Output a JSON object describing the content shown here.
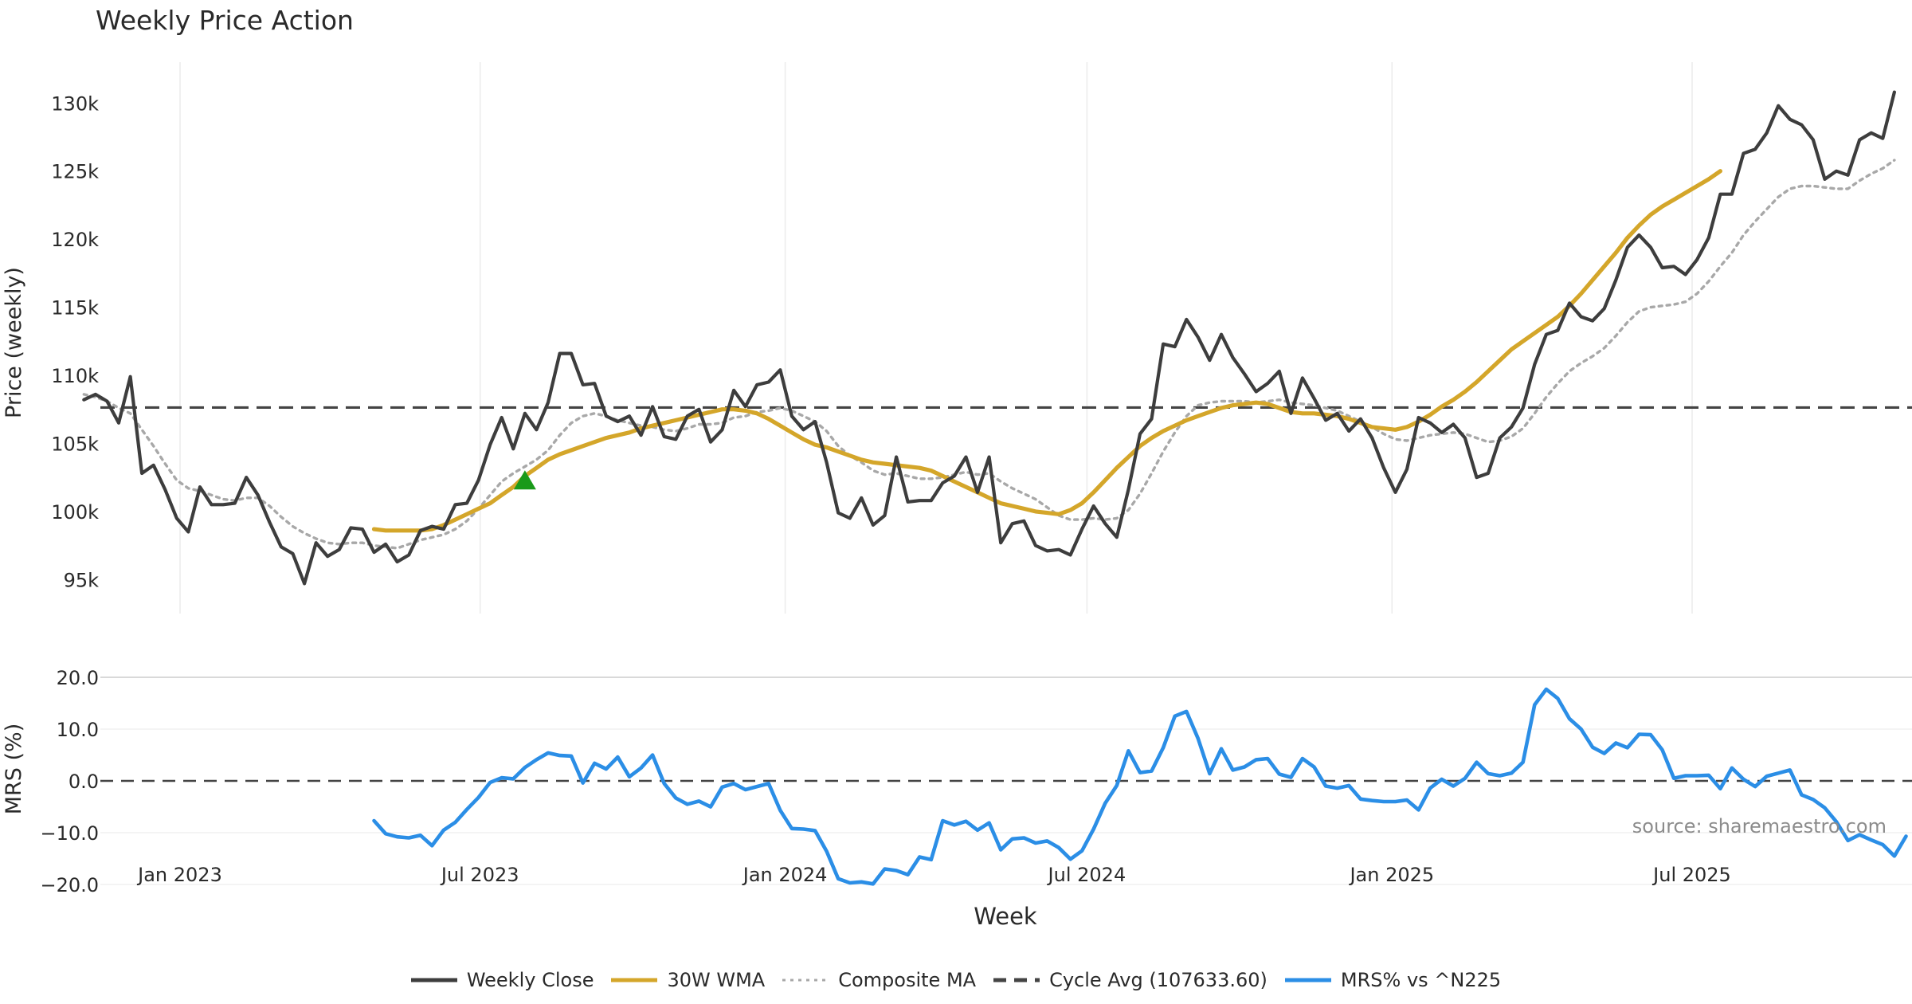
{
  "title": "Weekly Price Action",
  "source": "source: sharemaestro.com",
  "xlabel": "Week",
  "colors": {
    "close": "#3d3d3d",
    "wma": "#d4a62a",
    "composite": "#a8a8a8",
    "cycle": "#444444",
    "mrs": "#2b8ee6",
    "marker": "#1a9a1a",
    "grid": "#ececec"
  },
  "chart_data": [
    {
      "type": "line",
      "title": "Weekly Price Action",
      "xlabel": "Week",
      "ylabel": "Price (weekly)",
      "ylim": [
        92500,
        133000
      ],
      "yticks": [
        95000,
        100000,
        105000,
        110000,
        115000,
        120000,
        125000,
        130000
      ],
      "ytick_labels": [
        "95k",
        "100k",
        "105k",
        "110k",
        "115k",
        "120k",
        "125k",
        "130k"
      ],
      "x_start": "2022-11-04",
      "x_step_weeks": 1,
      "xticks": [
        "2023-01-01",
        "2023-07-01",
        "2024-01-01",
        "2024-07-01",
        "2025-01-01",
        "2025-07-01"
      ],
      "xtick_labels": [
        "Jan 2023",
        "Jul 2023",
        "Jan 2024",
        "Jul 2024",
        "Jan 2025",
        "Jul 2025"
      ],
      "series": [
        {
          "name": "Weekly Close",
          "start_index": 0,
          "values": [
            108200,
            108600,
            108100,
            106500,
            109900,
            102800,
            103400,
            101600,
            99500,
            98500,
            101800,
            100500,
            100500,
            100600,
            102500,
            101200,
            99200,
            97400,
            96900,
            94700,
            97700,
            96700,
            97200,
            98800,
            98700,
            97000,
            97600,
            96300,
            96800,
            98600,
            98900,
            98700,
            100500,
            100600,
            102300,
            104900,
            106900,
            104600,
            107200,
            106000,
            108000,
            111600,
            111600,
            109300,
            109400,
            107000,
            106600,
            107000,
            105600,
            107700,
            105500,
            105300,
            107000,
            107500,
            105100,
            106000,
            108900,
            107700,
            109300,
            109500,
            110400,
            107000,
            106000,
            106600,
            103600,
            99900,
            99500,
            101000,
            99000,
            99700,
            104000,
            100700,
            100800,
            100800,
            102100,
            102600,
            104000,
            101400,
            104000,
            97700,
            99100,
            99300,
            97500,
            97100,
            97200,
            96800,
            98700,
            100400,
            99100,
            98100,
            101600,
            105700,
            106800,
            112300,
            112100,
            114100,
            112800,
            111100,
            113000,
            111300,
            110100,
            108800,
            109400,
            110300,
            107200,
            109800,
            108300,
            106700,
            107200,
            105900,
            106800,
            105400,
            103200,
            101400,
            103100,
            106900,
            106500,
            105800,
            106400,
            105400,
            102500,
            102800,
            105400,
            106200,
            107600,
            110800,
            113000,
            113300,
            115300,
            114300,
            114000,
            114900,
            117000,
            119400,
            120300,
            119400,
            117900,
            118000,
            117400,
            118500,
            120100,
            123300,
            123300,
            126300,
            126600,
            127800,
            129800,
            128800,
            128400,
            127300,
            124400,
            125000,
            124700,
            127300,
            127800,
            127400,
            130800
          ]
        },
        {
          "name": "30W WMA",
          "start_index": 25,
          "values": [
            98700,
            98600,
            98600,
            98600,
            98600,
            98700,
            99000,
            99400,
            99800,
            100200,
            100600,
            101200,
            101800,
            102600,
            103200,
            103800,
            104200,
            104500,
            104800,
            105100,
            105400,
            105600,
            105800,
            106100,
            106300,
            106500,
            106700,
            106900,
            107100,
            107300,
            107500,
            107500,
            107400,
            107200,
            106800,
            106300,
            105800,
            105300,
            104900,
            104700,
            104400,
            104100,
            103800,
            103600,
            103500,
            103400,
            103300,
            103200,
            103000,
            102600,
            102200,
            101800,
            101400,
            101000,
            100600,
            100400,
            100200,
            100000,
            99900,
            99800,
            100100,
            100600,
            101400,
            102300,
            103200,
            104000,
            104800,
            105400,
            105900,
            106300,
            106700,
            107000,
            107300,
            107600,
            107800,
            107900,
            108000,
            107900,
            107600,
            107300,
            107200,
            107200,
            107100,
            107000,
            106800,
            106500,
            106200,
            106100,
            106000,
            106200,
            106600,
            107100,
            107700,
            108200,
            108800,
            109500,
            110300,
            111100,
            111900,
            112500,
            113100,
            113700,
            114300,
            115100,
            116000,
            117000,
            118000,
            119000,
            120100,
            121000,
            121800,
            122400,
            122900,
            123400,
            123900,
            124400,
            125000
          ]
        },
        {
          "name": "Composite MA",
          "start_index": 0,
          "values": [
            108600,
            108400,
            108100,
            107600,
            107200,
            106000,
            104800,
            103500,
            102300,
            101700,
            101500,
            101200,
            100900,
            100800,
            101000,
            101000,
            100400,
            99600,
            98900,
            98400,
            98000,
            97700,
            97600,
            97700,
            97700,
            97500,
            97400,
            97300,
            97600,
            97900,
            98100,
            98300,
            98700,
            99300,
            100200,
            101200,
            102200,
            102800,
            103300,
            103800,
            104500,
            105600,
            106500,
            107000,
            107200,
            107000,
            106700,
            106500,
            106300,
            106200,
            106000,
            105900,
            106100,
            106400,
            106400,
            106500,
            106900,
            107000,
            107300,
            107400,
            107600,
            107400,
            107000,
            106600,
            105900,
            104800,
            104100,
            103600,
            103000,
            102700,
            102800,
            102600,
            102400,
            102400,
            102500,
            102700,
            102900,
            102700,
            102800,
            102200,
            101700,
            101300,
            100900,
            100300,
            99700,
            99400,
            99400,
            99500,
            99400,
            99500,
            100100,
            101300,
            102800,
            104400,
            105800,
            107000,
            107800,
            108000,
            108100,
            108100,
            108100,
            108000,
            108100,
            108200,
            108000,
            107900,
            107800,
            107600,
            107400,
            107000,
            106600,
            106200,
            105700,
            105300,
            105200,
            105400,
            105600,
            105700,
            105800,
            105700,
            105400,
            105100,
            105200,
            105500,
            106100,
            107200,
            108400,
            109400,
            110300,
            110900,
            111400,
            112000,
            112900,
            113900,
            114700,
            115000,
            115100,
            115200,
            115400,
            116000,
            116900,
            118000,
            119000,
            120300,
            121300,
            122200,
            123100,
            123700,
            123900,
            123900,
            123800,
            123700,
            123700,
            124300,
            124800,
            125200,
            125800
          ]
        },
        {
          "name": "Cycle Avg (107633.60)",
          "constant": 107633.6
        }
      ],
      "markers": [
        {
          "type": "triangle-up",
          "index": 38,
          "y": 102200
        }
      ],
      "legend": [
        "Weekly Close",
        "30W WMA",
        "Composite MA",
        "Cycle Avg (107633.60)",
        "MRS% vs ^N225"
      ],
      "legend_position": "bottom-center"
    },
    {
      "type": "line",
      "ylabel": "MRS (%)",
      "ylim": [
        -20,
        20
      ],
      "yticks": [
        20,
        10,
        0,
        -10,
        -20
      ],
      "ytick_labels": [
        "20.0",
        "10.0",
        "0.0",
        "−10.0",
        "−20.0"
      ],
      "zero_line": 0,
      "series": [
        {
          "name": "MRS% vs ^N225",
          "start_index": 25,
          "values": [
            -7.7,
            -10.2,
            -10.8,
            -11.0,
            -10.5,
            -12.5,
            -9.5,
            -8.0,
            -5.5,
            -3.2,
            -0.3,
            0.6,
            0.4,
            2.6,
            4.1,
            5.4,
            4.9,
            4.8,
            -0.4,
            3.4,
            2.3,
            4.6,
            0.8,
            2.5,
            5.0,
            -0.5,
            -3.3,
            -4.5,
            -3.9,
            -5.0,
            -1.2,
            -0.5,
            -1.7,
            -1.1,
            -0.5,
            -5.7,
            -9.2,
            -9.3,
            -9.6,
            -13.6,
            -18.9,
            -19.7,
            -19.5,
            -19.9,
            -17.0,
            -17.3,
            -18.1,
            -14.7,
            -15.2,
            -7.7,
            -8.5,
            -7.8,
            -9.5,
            -8.1,
            -13.3,
            -11.2,
            -11.0,
            -12.0,
            -11.6,
            -12.9,
            -15.1,
            -13.5,
            -9.3,
            -4.3,
            -0.9,
            5.8,
            1.6,
            1.9,
            6.4,
            12.5,
            13.4,
            8.2,
            1.4,
            6.2,
            2.1,
            2.7,
            4.1,
            4.3,
            1.3,
            0.7,
            4.3,
            2.7,
            -1.0,
            -1.4,
            -0.9,
            -3.5,
            -3.8,
            -4.0,
            -4.0,
            -3.7,
            -5.6,
            -1.4,
            0.3,
            -1.0,
            0.5,
            3.6,
            1.4,
            1.0,
            1.5,
            3.6,
            14.7,
            17.7,
            15.9,
            12.0,
            10.0,
            6.5,
            5.3,
            7.3,
            6.4,
            9.0,
            8.9,
            6.0,
            0.5,
            1.0,
            1.0,
            1.1,
            -1.5,
            2.5,
            0.3,
            -1.1,
            0.9,
            1.5,
            2.1,
            -2.7,
            -3.6,
            -5.2,
            -7.9,
            -11.5,
            -10.4,
            -11.4,
            -12.3,
            -14.5,
            -10.7
          ]
        }
      ]
    }
  ],
  "legend": [
    {
      "label": "Weekly Close",
      "style": "solid",
      "colorKey": "close"
    },
    {
      "label": "30W WMA",
      "style": "solid",
      "colorKey": "wma"
    },
    {
      "label": "Composite MA",
      "style": "dotted",
      "colorKey": "composite"
    },
    {
      "label": "Cycle Avg (107633.60)",
      "style": "dashed",
      "colorKey": "cycle"
    },
    {
      "label": "MRS% vs ^N225",
      "style": "solid",
      "colorKey": "mrs"
    }
  ]
}
